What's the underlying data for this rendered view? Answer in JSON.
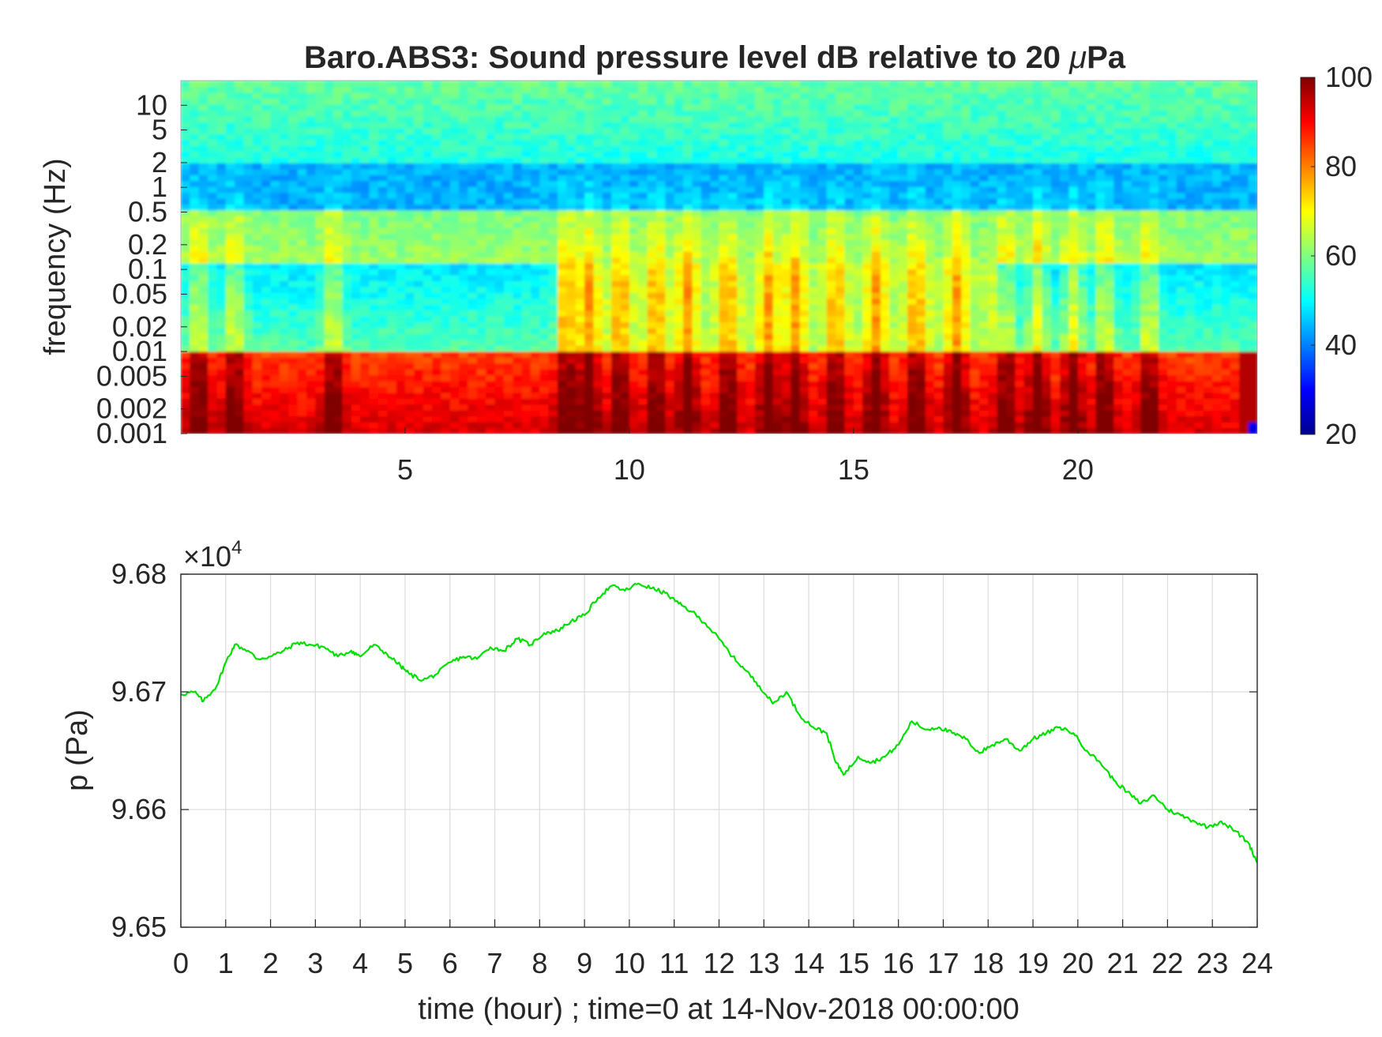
{
  "chart_data": [
    {
      "type": "heatmap",
      "title_prefix": "Baro.ABS3: Sound pressure level dB relative to 20 ",
      "title_mu": "μ",
      "title_suffix": "Pa",
      "xlabel": "",
      "ylabel": "frequency (Hz)",
      "x_axis": {
        "range_hours": [
          0,
          24
        ],
        "ticks": [
          5,
          10,
          15,
          20
        ],
        "tick_labels": [
          "5",
          "10",
          "15",
          "20"
        ]
      },
      "y_axis": {
        "scale": "log",
        "range_hz": [
          0.001,
          20
        ],
        "ticks": [
          0.001,
          0.002,
          0.005,
          0.01,
          0.02,
          0.05,
          0.1,
          0.2,
          0.5,
          1,
          2,
          5,
          10
        ],
        "tick_labels": [
          "0.001",
          "0.002",
          "0.005",
          "0.01",
          "0.02",
          "0.05",
          "0.1",
          "0.2",
          "0.5",
          "1",
          "2",
          "5",
          "10"
        ]
      },
      "colorbar": {
        "range_db": [
          20,
          100
        ],
        "ticks": [
          20,
          40,
          60,
          80,
          100
        ],
        "tick_labels": [
          "20",
          "40",
          "60",
          "80",
          "100"
        ],
        "colormap": "jet"
      },
      "approx_band_levels_db": [
        {
          "freq_hz": [
            2,
            20
          ],
          "level_db": 52
        },
        {
          "freq_hz": [
            0.5,
            2
          ],
          "level_db": 44
        },
        {
          "freq_hz": [
            0.12,
            0.5
          ],
          "level_db": 60
        },
        {
          "freq_hz": [
            0.01,
            0.12
          ],
          "level_db_quiet": 48,
          "level_db_active_hours": [
            8.4,
            18.2
          ]
        },
        {
          "freq_hz": [
            0.001,
            0.01
          ],
          "level_db": 85
        }
      ],
      "burst_hours": [
        0.4,
        1.2,
        3.4,
        8.6,
        9.1,
        9.8,
        10.6,
        11.3,
        12.2,
        13.1,
        13.7,
        14.6,
        15.5,
        16.4,
        17.3,
        18.4,
        19.1,
        19.9,
        20.6,
        21.6
      ]
    },
    {
      "type": "line",
      "title": "",
      "xlabel": "time (hour) ; time=0 at 14-Nov-2018 00:00:00",
      "ylabel": "p (Pa)",
      "multiplier_prefix": "×10",
      "multiplier_exponent": "4",
      "xlim": [
        0,
        24
      ],
      "ylim": [
        9.65,
        9.68
      ],
      "x_ticks": [
        "0",
        "1",
        "2",
        "3",
        "4",
        "5",
        "6",
        "7",
        "8",
        "9",
        "10",
        "11",
        "12",
        "13",
        "14",
        "15",
        "16",
        "17",
        "18",
        "19",
        "20",
        "21",
        "22",
        "23",
        "24"
      ],
      "y_ticks": [
        "9.65",
        "9.66",
        "9.67",
        "9.68"
      ],
      "grid": true,
      "color": "#00e000",
      "series": [
        {
          "x": [
            0,
            0.3,
            0.5,
            0.8,
            1.0,
            1.2,
            1.5,
            1.7,
            2.0,
            2.3,
            2.6,
            2.9,
            3.2,
            3.5,
            3.8,
            4.0,
            4.3,
            4.6,
            4.9,
            5.1,
            5.4,
            5.7,
            6.0,
            6.3,
            6.6,
            6.9,
            7.2,
            7.5,
            7.8,
            8.1,
            8.4,
            8.7,
            9.0,
            9.3,
            9.6,
            9.9,
            10.2,
            10.5,
            10.8,
            11.1,
            11.4,
            11.7,
            12.0,
            12.3,
            12.6,
            12.9,
            13.2,
            13.5,
            13.8,
            14.1,
            14.4,
            14.6,
            14.8,
            15.1,
            15.4,
            15.7,
            16.0,
            16.3,
            16.6,
            16.9,
            17.2,
            17.5,
            17.8,
            18.1,
            18.4,
            18.7,
            19.0,
            19.3,
            19.6,
            19.9,
            20.2,
            20.5,
            20.8,
            21.1,
            21.4,
            21.7,
            22.0,
            22.3,
            22.6,
            22.9,
            23.2,
            23.5,
            23.8,
            24.0
          ],
          "y": [
            9.6698,
            9.67,
            9.6692,
            9.6705,
            9.6725,
            9.674,
            9.6735,
            9.6728,
            9.673,
            9.6735,
            9.6742,
            9.674,
            9.6738,
            9.673,
            9.6735,
            9.673,
            9.674,
            9.6732,
            9.6722,
            9.6715,
            9.671,
            9.6715,
            9.6725,
            9.673,
            9.6728,
            9.6738,
            9.6735,
            9.6745,
            9.674,
            9.675,
            9.6752,
            9.676,
            9.6765,
            9.678,
            9.679,
            9.6786,
            9.6792,
            9.6788,
            9.6784,
            9.6775,
            9.6768,
            9.6758,
            9.6745,
            9.673,
            9.6718,
            9.6705,
            9.669,
            9.67,
            9.668,
            9.667,
            9.6665,
            9.664,
            9.663,
            9.6645,
            9.664,
            9.6645,
            9.6655,
            9.6675,
            9.6668,
            9.667,
            9.6665,
            9.666,
            9.6648,
            9.6655,
            9.666,
            9.665,
            9.666,
            9.6665,
            9.667,
            9.6665,
            9.665,
            9.664,
            9.6625,
            9.6615,
            9.6605,
            9.6612,
            9.66,
            9.6595,
            9.659,
            9.6585,
            9.659,
            9.6582,
            9.6572,
            9.6555
          ]
        }
      ]
    }
  ]
}
